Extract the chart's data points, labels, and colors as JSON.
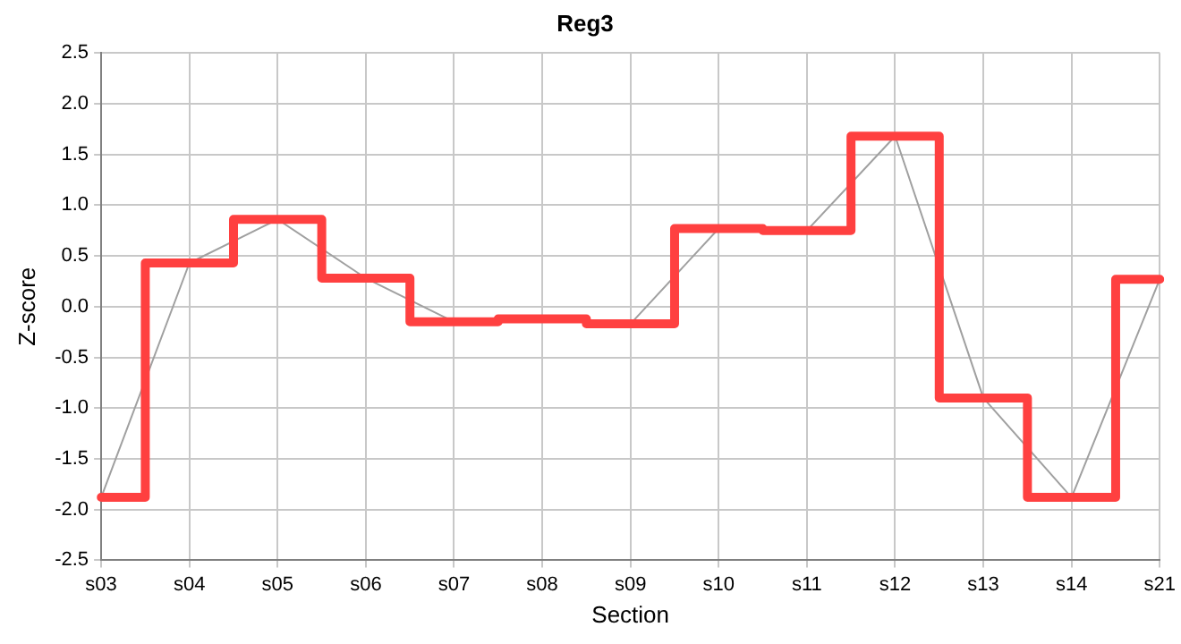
{
  "chart_data": {
    "type": "step",
    "title": "Reg3",
    "xlabel": "Section",
    "ylabel": "Z-score",
    "categories": [
      "s03",
      "s04",
      "s05",
      "s06",
      "s07",
      "s08",
      "s09",
      "s10",
      "s11",
      "s12",
      "s13",
      "s14",
      "s21"
    ],
    "series": [
      {
        "type": "line",
        "color": "#a0a0a0",
        "values": [
          -1.88,
          0.43,
          0.86,
          0.28,
          -0.15,
          -0.12,
          -0.17,
          0.77,
          0.75,
          1.68,
          -0.9,
          -1.88,
          0.27
        ]
      },
      {
        "color": "#ff4040",
        "values": [
          -1.88,
          0.43,
          0.86,
          0.28,
          -0.15,
          -0.12,
          -0.17,
          0.77,
          0.75,
          1.68,
          -0.9,
          -1.88,
          0.27
        ]
      }
    ],
    "ylim": [
      -2.5,
      2.5
    ],
    "yticks": [
      -2.5,
      {
        "value": -2,
        "label": "-2.0"
      },
      -1.5,
      {
        "value": -1,
        "label": "-1.0"
      },
      -0.5,
      {
        "value": 0,
        "label": "0.0"
      },
      0.5,
      {
        "value": 1,
        "label": "1.0"
      },
      1.5,
      {
        "value": 2,
        "label": "2.0"
      },
      2.5
    ],
    "grid": true,
    "legend": false,
    "marker": "none"
  }
}
